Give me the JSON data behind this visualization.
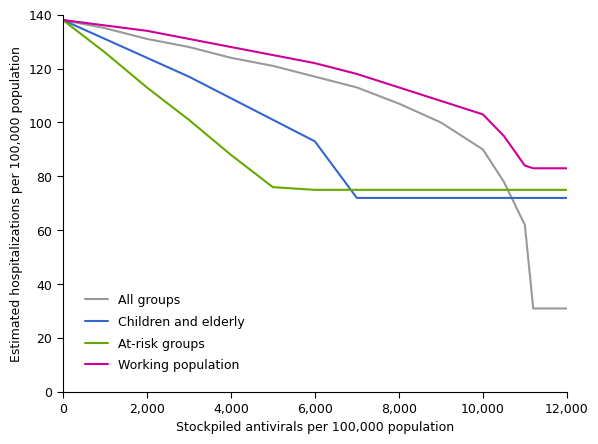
{
  "title": "",
  "xlabel": "Stockpiled antivirals per 100,000 population",
  "ylabel": "Estimated hospitalizations per 100,000 population",
  "xlim": [
    0,
    12000
  ],
  "ylim": [
    0,
    140
  ],
  "xticks": [
    0,
    2000,
    4000,
    6000,
    8000,
    10000,
    12000
  ],
  "yticks": [
    0,
    20,
    40,
    60,
    80,
    100,
    120,
    140
  ],
  "lines": {
    "All groups": {
      "x": [
        0,
        1000,
        2000,
        3000,
        4000,
        5000,
        6000,
        7000,
        8000,
        9000,
        10000,
        10500,
        11000,
        11200,
        12000
      ],
      "y": [
        138,
        135,
        131,
        128,
        124,
        121,
        117,
        113,
        107,
        100,
        90,
        78,
        62,
        31,
        31
      ],
      "color": "#999999",
      "linewidth": 1.5
    },
    "Children and elderly": {
      "x": [
        0,
        1000,
        2000,
        3000,
        4000,
        5000,
        6000,
        7000,
        8000,
        9000,
        10000,
        11000,
        12000
      ],
      "y": [
        138,
        131,
        124,
        117,
        109,
        101,
        93,
        72,
        72,
        72,
        72,
        72,
        72
      ],
      "color": "#3366cc",
      "linewidth": 1.5
    },
    "At-risk groups": {
      "x": [
        0,
        1000,
        2000,
        3000,
        4000,
        5000,
        6000,
        7000,
        8000,
        9000,
        10000,
        11000,
        12000
      ],
      "y": [
        138,
        126,
        113,
        101,
        88,
        76,
        75,
        75,
        75,
        75,
        75,
        75,
        75
      ],
      "color": "#66aa00",
      "linewidth": 1.5
    },
    "Working population": {
      "x": [
        0,
        1000,
        2000,
        3000,
        4000,
        5000,
        6000,
        7000,
        8000,
        9000,
        10000,
        10500,
        11000,
        11200,
        12000
      ],
      "y": [
        138,
        136,
        134,
        131,
        128,
        125,
        122,
        118,
        113,
        108,
        103,
        95,
        84,
        83,
        83
      ],
      "color": "#cc0099",
      "linewidth": 1.5
    }
  },
  "legend_order": [
    "All groups",
    "Children and elderly",
    "At-risk groups",
    "Working population"
  ],
  "background_color": "#ffffff",
  "font_size": 9,
  "tick_label_size": 9
}
